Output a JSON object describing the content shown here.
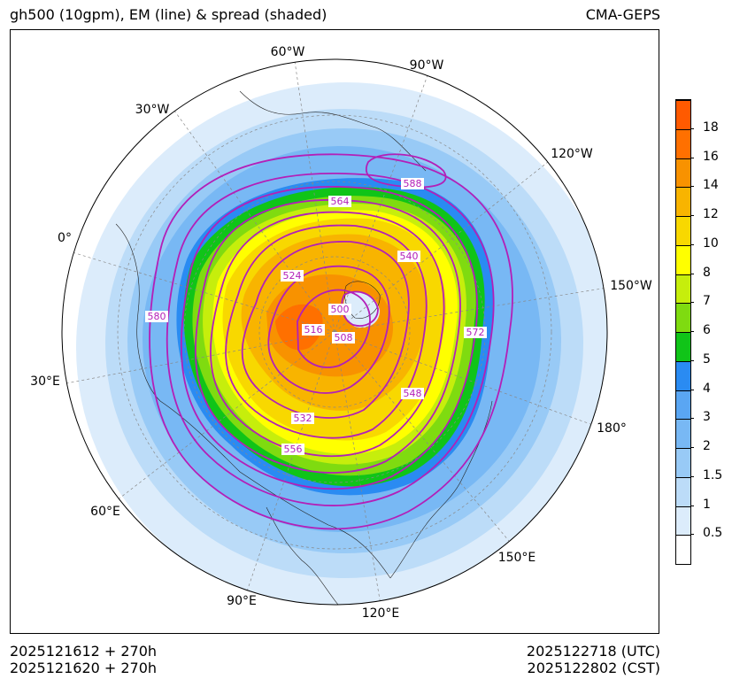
{
  "title": {
    "left": "gh500 (10gpm), EM (line) & spread (shaded)",
    "right": "CMA-GEPS"
  },
  "footer": {
    "init_utc": "2025121612 + 270h",
    "init_cst": "2025121620 + 270h",
    "valid_utc": "2025122718 (UTC)",
    "valid_cst": "2025122802 (CST)"
  },
  "map": {
    "projection": "north polar stereographic",
    "longitude_labels": [
      "60°W",
      "90°W",
      "30°W",
      "120°W",
      "0°",
      "150°W",
      "30°E",
      "180°",
      "60°E",
      "150°E",
      "90°E",
      "120°E"
    ],
    "contour_labels": [
      "588",
      "564",
      "540",
      "524",
      "500",
      "516",
      "508",
      "572",
      "580",
      "548",
      "532",
      "556"
    ],
    "contour_color": "#b31fb8"
  },
  "colorbar": {
    "ticks": [
      "0.5",
      "1",
      "1.5",
      "2",
      "3",
      "4",
      "5",
      "6",
      "7",
      "8",
      "10",
      "12",
      "14",
      "16",
      "18"
    ],
    "colors": [
      "#ffffff",
      "#dcecfb",
      "#bcdcf8",
      "#98caf6",
      "#78b8f4",
      "#5aa6f3",
      "#2a8bf2",
      "#10c418",
      "#7fdb10",
      "#c6ee0c",
      "#ffff00",
      "#f8d800",
      "#f8b400",
      "#f89200",
      "#ff7000",
      "#ff5a00"
    ]
  }
}
